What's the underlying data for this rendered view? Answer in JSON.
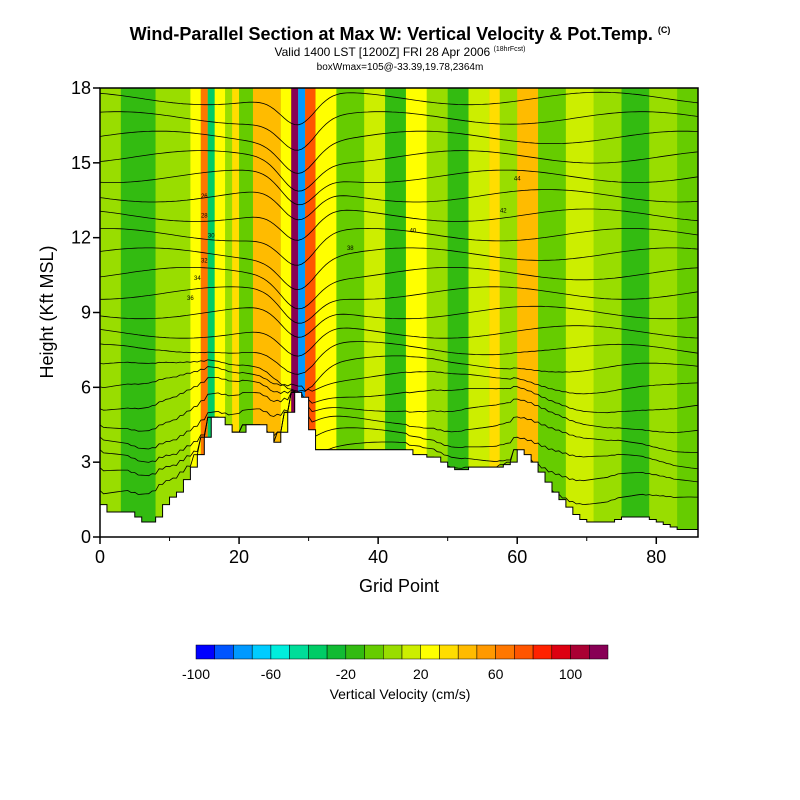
{
  "header": {
    "title": "Wind-Parallel Section at Max W: Vertical Velocity & Pot.Temp.",
    "copyright": "(C)",
    "valid": "Valid 1400 LST [1200Z] FRI 28 Apr 2006",
    "forecast": "(18hrFcst)",
    "boxinfo": "boxWmax=105@-33.39,19.78,2364m"
  },
  "chart_data": {
    "type": "heatmap",
    "xlabel": "Grid Point",
    "ylabel": "Height (Kft MSL)",
    "xlim": [
      0,
      86
    ],
    "ylim": [
      0,
      18
    ],
    "x_ticks": [
      0,
      20,
      40,
      60,
      80
    ],
    "y_ticks": [
      0,
      3,
      6,
      9,
      12,
      15,
      18
    ],
    "terrain": [
      [
        0,
        1.3
      ],
      [
        1,
        1
      ],
      [
        2,
        1
      ],
      [
        3,
        1
      ],
      [
        4,
        1
      ],
      [
        5,
        0.8
      ],
      [
        6,
        0.6
      ],
      [
        7,
        0.6
      ],
      [
        8,
        0.8
      ],
      [
        9,
        1.3
      ],
      [
        10,
        1.6
      ],
      [
        11,
        1.8
      ],
      [
        12,
        2.3
      ],
      [
        13,
        2.8
      ],
      [
        14,
        3.3
      ],
      [
        15,
        4
      ],
      [
        16,
        4.8
      ],
      [
        17,
        4.8
      ],
      [
        18,
        4.5
      ],
      [
        19,
        4.2
      ],
      [
        20,
        4.2
      ],
      [
        21,
        4.5
      ],
      [
        22,
        4.5
      ],
      [
        23,
        4.5
      ],
      [
        24,
        4.2
      ],
      [
        25,
        3.8
      ],
      [
        26,
        4.2
      ],
      [
        27,
        5
      ],
      [
        28,
        5.8
      ],
      [
        29,
        5.6
      ],
      [
        30,
        4.3
      ],
      [
        31,
        3.5
      ],
      [
        32,
        3.5
      ],
      [
        33,
        3.5
      ],
      [
        34,
        3.5
      ],
      [
        35,
        3.5
      ],
      [
        36,
        3.5
      ],
      [
        37,
        3.5
      ],
      [
        38,
        3.5
      ],
      [
        39,
        3.5
      ],
      [
        40,
        3.5
      ],
      [
        41,
        3.5
      ],
      [
        42,
        3.5
      ],
      [
        43,
        3.5
      ],
      [
        44,
        3.5
      ],
      [
        45,
        3.3
      ],
      [
        46,
        3.3
      ],
      [
        47,
        3.2
      ],
      [
        48,
        3.2
      ],
      [
        49,
        3
      ],
      [
        50,
        2.8
      ],
      [
        51,
        2.7
      ],
      [
        52,
        2.7
      ],
      [
        53,
        2.8
      ],
      [
        54,
        2.8
      ],
      [
        55,
        2.8
      ],
      [
        56,
        2.8
      ],
      [
        57,
        2.8
      ],
      [
        58,
        2.9
      ],
      [
        59,
        3
      ],
      [
        60,
        3.5
      ],
      [
        61,
        3.3
      ],
      [
        62,
        3
      ],
      [
        63,
        2.6
      ],
      [
        64,
        2.2
      ],
      [
        65,
        1.8
      ],
      [
        66,
        1.5
      ],
      [
        67,
        1.2
      ],
      [
        68,
        0.9
      ],
      [
        69,
        0.7
      ],
      [
        70,
        0.6
      ],
      [
        71,
        0.6
      ],
      [
        72,
        0.6
      ],
      [
        73,
        0.6
      ],
      [
        74,
        0.7
      ],
      [
        75,
        0.8
      ],
      [
        76,
        0.8
      ],
      [
        77,
        0.8
      ],
      [
        78,
        0.8
      ],
      [
        79,
        0.7
      ],
      [
        80,
        0.6
      ],
      [
        81,
        0.5
      ],
      [
        82,
        0.4
      ],
      [
        83,
        0.3
      ],
      [
        84,
        0.3
      ],
      [
        85,
        0.3
      ],
      [
        86,
        0.3
      ]
    ],
    "vertical_velocity_bands": [
      {
        "x": [
          0,
          3
        ],
        "value": 0
      },
      {
        "x": [
          3,
          8
        ],
        "value": -20
      },
      {
        "x": [
          8,
          13
        ],
        "value": 0
      },
      {
        "x": [
          13,
          14.5
        ],
        "value": 20
      },
      {
        "x": [
          14.5,
          15.5
        ],
        "value": 60
      },
      {
        "x": [
          15.5,
          16.5
        ],
        "value": -40
      },
      {
        "x": [
          16.5,
          18
        ],
        "value": 20
      },
      {
        "x": [
          18,
          19
        ],
        "value": 0
      },
      {
        "x": [
          19,
          20
        ],
        "value": 30
      },
      {
        "x": [
          20,
          22
        ],
        "value": -10
      },
      {
        "x": [
          22,
          26
        ],
        "value": 40
      },
      {
        "x": [
          26,
          27.5
        ],
        "value": 20
      },
      {
        "x": [
          27.5,
          28.5
        ],
        "value": 110
      },
      {
        "x": [
          28.5,
          29.5
        ],
        "value": -80
      },
      {
        "x": [
          29.5,
          31
        ],
        "value": 70
      },
      {
        "x": [
          31,
          34
        ],
        "value": 20
      },
      {
        "x": [
          34,
          38
        ],
        "value": -10
      },
      {
        "x": [
          38,
          41
        ],
        "value": 10
      },
      {
        "x": [
          41,
          44
        ],
        "value": -20
      },
      {
        "x": [
          44,
          47
        ],
        "value": 20
      },
      {
        "x": [
          47,
          50
        ],
        "value": 0
      },
      {
        "x": [
          50,
          53
        ],
        "value": -20
      },
      {
        "x": [
          53,
          56
        ],
        "value": 10
      },
      {
        "x": [
          56,
          57.5
        ],
        "value": 30
      },
      {
        "x": [
          57.5,
          60
        ],
        "value": 0
      },
      {
        "x": [
          60,
          63
        ],
        "value": 40
      },
      {
        "x": [
          63,
          67
        ],
        "value": -10
      },
      {
        "x": [
          67,
          71
        ],
        "value": 10
      },
      {
        "x": [
          71,
          75
        ],
        "value": 0
      },
      {
        "x": [
          75,
          79
        ],
        "value": -20
      },
      {
        "x": [
          79,
          83
        ],
        "value": 0
      },
      {
        "x": [
          83,
          86
        ],
        "value": -10
      }
    ],
    "potential_temperature_labels": [
      "26",
      "28",
      "30",
      "32",
      "34",
      "36",
      "38",
      "40",
      "42",
      "44"
    ],
    "colorbar": {
      "title": "Vertical Velocity (cm/s)",
      "levels": [
        -100,
        -90,
        -80,
        -70,
        -60,
        -50,
        -40,
        -30,
        -20,
        -10,
        0,
        10,
        20,
        30,
        40,
        50,
        60,
        70,
        80,
        90,
        100,
        110
      ],
      "tick_labels": [
        {
          "value": -100,
          "text": "-100"
        },
        {
          "value": -60,
          "text": "-60"
        },
        {
          "value": -20,
          "text": "-20"
        },
        {
          "value": 20,
          "text": "20"
        },
        {
          "value": 60,
          "text": "60"
        },
        {
          "value": 100,
          "text": "100"
        }
      ],
      "colors": [
        "#0000ff",
        "#0055ff",
        "#0099ff",
        "#00ccff",
        "#00eedd",
        "#00dd99",
        "#00cc66",
        "#11bb33",
        "#33bb11",
        "#66cc00",
        "#99dd00",
        "#ccee00",
        "#ffff00",
        "#ffdd00",
        "#ffbb00",
        "#ff9900",
        "#ff7700",
        "#ff5500",
        "#ff2200",
        "#dd0011",
        "#aa0033",
        "#880055"
      ]
    }
  }
}
